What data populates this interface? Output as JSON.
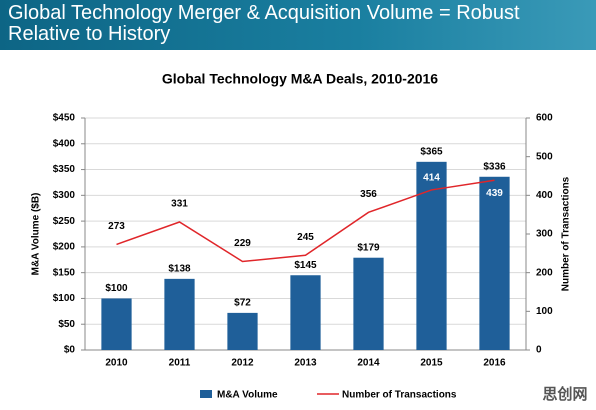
{
  "header": {
    "title": "Global Technology Merger & Acquisition Volume = Robust Relative to History"
  },
  "watermark": "思创网",
  "chart_data": {
    "type": "bar",
    "title": "Global Technology M&A Deals, 2010-2016",
    "y_label": "M&A Volume ($B)",
    "y2_label": "Number of Transactions",
    "categories": [
      "2010",
      "2011",
      "2012",
      "2013",
      "2014",
      "2015",
      "2016"
    ],
    "series": [
      {
        "name": "M&A Volume",
        "type": "bar",
        "color": "#1f5f99",
        "values": [
          100,
          138,
          72,
          145,
          179,
          365,
          336
        ],
        "value_labels": [
          "$100",
          "$138",
          "$72",
          "$145",
          "$179",
          "$365",
          "$336"
        ]
      },
      {
        "name": "Number of Transactions",
        "type": "line",
        "axis": "y2",
        "color": "#e0262a",
        "values": [
          273,
          331,
          229,
          245,
          356,
          414,
          439
        ]
      }
    ],
    "ylim": [
      0,
      450
    ],
    "yticks": [
      {
        "value": 0,
        "label": "$0"
      },
      {
        "value": 50,
        "label": "$50"
      },
      {
        "value": 100,
        "label": "$100"
      },
      {
        "value": 150,
        "label": "$150"
      },
      {
        "value": 200,
        "label": "$200"
      },
      {
        "value": 250,
        "label": "$250"
      },
      {
        "value": 300,
        "label": "$300"
      },
      {
        "value": 350,
        "label": "$350"
      },
      {
        "value": 400,
        "label": "$400"
      },
      {
        "value": 450,
        "label": "$450"
      }
    ],
    "y2lim": [
      0,
      600
    ],
    "y2ticks": [
      0,
      100,
      200,
      300,
      400,
      500,
      600
    ],
    "grid": true,
    "legend": "bottom"
  }
}
